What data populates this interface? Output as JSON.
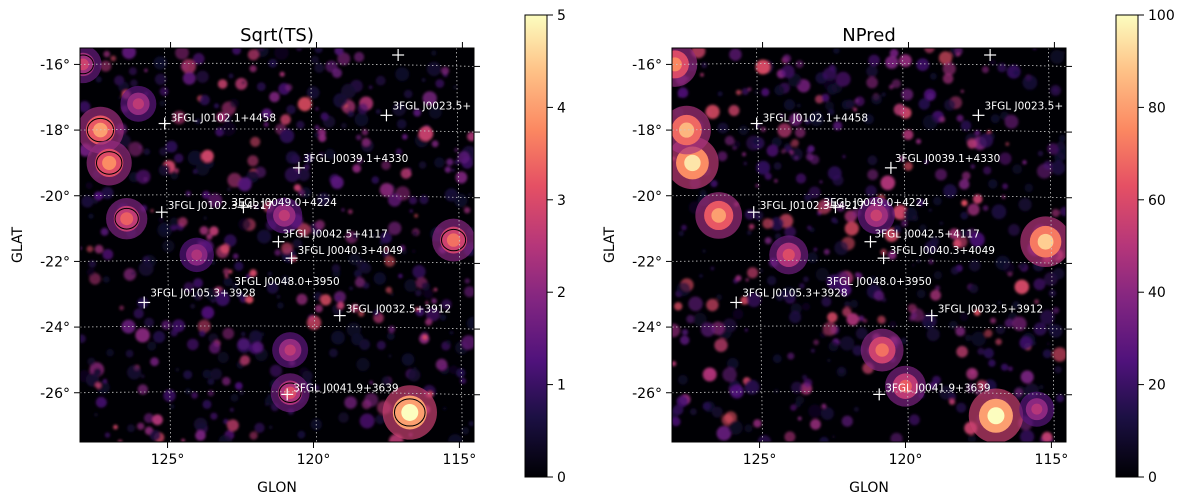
{
  "chart_data": [
    {
      "type": "heatmap",
      "title": "Sqrt(TS)",
      "xlabel": "GLON",
      "ylabel": "GLAT",
      "x_ticks": [
        "125°",
        "120°",
        "115°"
      ],
      "y_ticks": [
        "-16°",
        "-18°",
        "-20°",
        "-22°",
        "-24°",
        "-26°"
      ],
      "x_range_deg": [
        128,
        114.5
      ],
      "y_range_deg": [
        -27.5,
        -15.5
      ],
      "x_reversed": true,
      "grid": true,
      "colormap": "magma",
      "colorbar": {
        "min": 0,
        "max": 5,
        "ticks": [
          "0",
          "1",
          "2",
          "3",
          "4",
          "5"
        ]
      },
      "sources": [
        {
          "name": "3FGL J0102.1+4458",
          "glon": 125.1,
          "glat": -17.8
        },
        {
          "name": "3FGL J0023.5+",
          "glon": 117.5,
          "glat": -17.55
        },
        {
          "name": "3FGL J0039.1+4330",
          "glon": 120.5,
          "glat": -19.15
        },
        {
          "name": "3FGL J0102.3+4217",
          "glon": 125.2,
          "glat": -20.5
        },
        {
          "name": "3FGL J0049.0+4224",
          "glon": 122.4,
          "glat": -20.35
        },
        {
          "name": "3FGL J0042.5+4117",
          "glon": 121.2,
          "glat": -21.4
        },
        {
          "name": "3FGL J0040.3+4049",
          "glon": 120.75,
          "glat": -21.9
        },
        {
          "name": "3FGL J0048.0+3950",
          "glon": "",
          "glat": ""
        },
        {
          "name": "3FGL J0105.3+3928",
          "glon": 125.8,
          "glat": -23.25
        },
        {
          "name": "3FGL J0032.5+3912",
          "glon": 119.1,
          "glat": -23.65
        },
        {
          "name": "3FGL J0041.9+3639",
          "glon": 120.9,
          "glat": -26.05
        }
      ],
      "bright_spots": [
        {
          "glon": 116.7,
          "glat": -26.6,
          "value": 5.0
        },
        {
          "glon": 127.3,
          "glat": -18.0,
          "value": 4.0
        },
        {
          "glon": 127.0,
          "glat": -19.0,
          "value": 3.8
        },
        {
          "glon": 126.4,
          "glat": -20.7,
          "value": 3.3
        },
        {
          "glon": 115.2,
          "glat": -21.35,
          "value": 3.5
        },
        {
          "glon": 120.8,
          "glat": -26.0,
          "value": 3.0
        },
        {
          "glon": 120.8,
          "glat": -24.7,
          "value": 2.6
        },
        {
          "glon": 121.0,
          "glat": -20.6,
          "value": 2.6
        },
        {
          "glon": 124.0,
          "glat": -21.8,
          "value": 2.4
        },
        {
          "glon": 126.0,
          "glat": -17.2,
          "value": 2.6
        },
        {
          "glon": 127.9,
          "glat": -16.0,
          "value": 2.8
        }
      ]
    },
    {
      "type": "heatmap",
      "title": "NPred",
      "xlabel": "GLON",
      "ylabel": "GLAT",
      "x_ticks": [
        "125°",
        "120°",
        "115°"
      ],
      "y_ticks": [
        "-16°",
        "-18°",
        "-20°",
        "-22°",
        "-24°",
        "-26°"
      ],
      "x_range_deg": [
        128,
        114.5
      ],
      "y_range_deg": [
        -27.5,
        -15.5
      ],
      "x_reversed": true,
      "grid": true,
      "colormap": "magma",
      "colorbar": {
        "min": 0,
        "max": 100,
        "ticks": [
          "0",
          "20",
          "40",
          "60",
          "80",
          "100"
        ]
      },
      "sources": [
        {
          "name": "3FGL J0102.1+4458",
          "glon": 125.1,
          "glat": -17.8
        },
        {
          "name": "3FGL J0023.5+",
          "glon": 117.5,
          "glat": -17.55
        },
        {
          "name": "3FGL J0039.1+4330",
          "glon": 120.5,
          "glat": -19.15
        },
        {
          "name": "3FGL J0102.3+4217",
          "glon": 125.2,
          "glat": -20.5
        },
        {
          "name": "3FGL J0049.0+4224",
          "glon": 122.4,
          "glat": -20.35
        },
        {
          "name": "3FGL J0042.5+4117",
          "glon": 121.2,
          "glat": -21.4
        },
        {
          "name": "3FGL J0040.3+4049",
          "glon": 120.75,
          "glat": -21.9
        },
        {
          "name": "3FGL J0048.0+3950",
          "glon": "",
          "glat": ""
        },
        {
          "name": "3FGL J0105.3+3928",
          "glon": 125.8,
          "glat": -23.25
        },
        {
          "name": "3FGL J0032.5+3912",
          "glon": 119.1,
          "glat": -23.65
        },
        {
          "name": "3FGL J0041.9+3639",
          "glon": 120.9,
          "glat": -26.05
        }
      ],
      "bright_spots": [
        {
          "glon": 116.9,
          "glat": -26.7,
          "value": 100
        },
        {
          "glon": 127.3,
          "glat": -19.0,
          "value": 95
        },
        {
          "glon": 127.5,
          "glat": -18.0,
          "value": 85
        },
        {
          "glon": 115.2,
          "glat": -21.4,
          "value": 90
        },
        {
          "glon": 126.4,
          "glat": -20.6,
          "value": 80
        },
        {
          "glon": 120.8,
          "glat": -24.7,
          "value": 70
        },
        {
          "glon": 120.0,
          "glat": -25.8,
          "value": 65
        },
        {
          "glon": 124.0,
          "glat": -21.8,
          "value": 60
        },
        {
          "glon": 127.9,
          "glat": -16.0,
          "value": 75
        },
        {
          "glon": 121.0,
          "glat": -20.6,
          "value": 55
        },
        {
          "glon": 115.5,
          "glat": -26.5,
          "value": 50
        }
      ]
    }
  ]
}
